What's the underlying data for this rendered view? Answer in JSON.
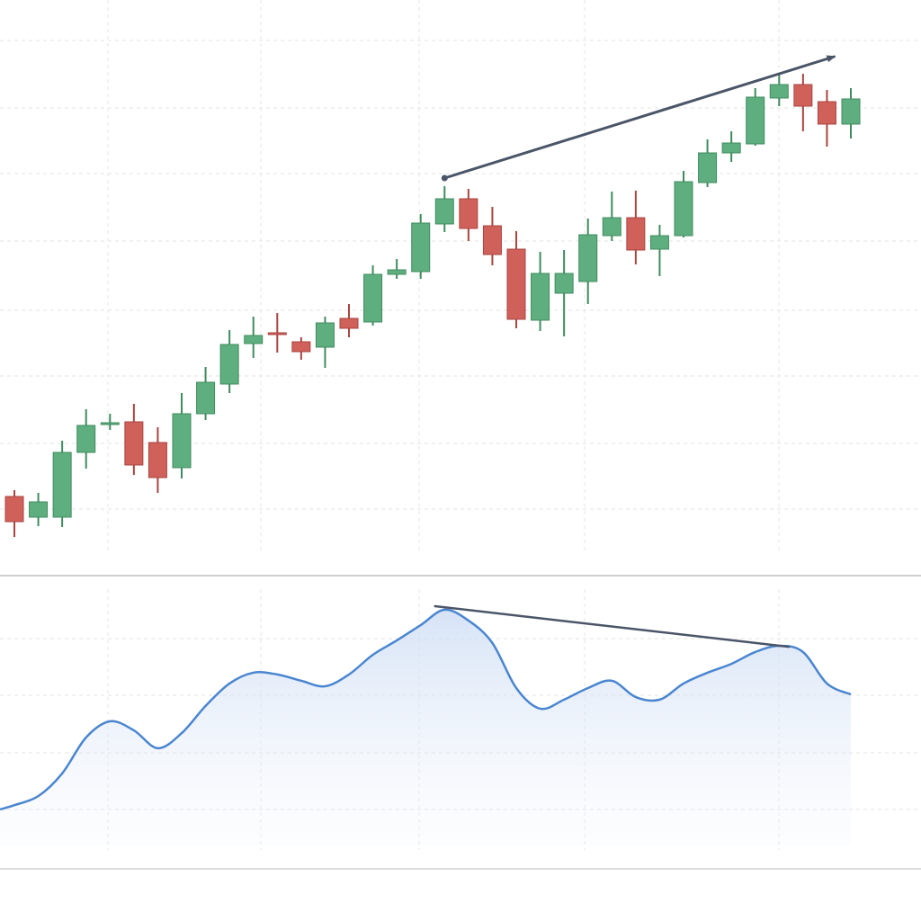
{
  "chart_data": [
    {
      "type": "candlestick",
      "title": "",
      "xlabel": "",
      "ylabel": "",
      "ylim": [
        92,
        212
      ],
      "grid": true,
      "colors": {
        "up": "#5fae7f",
        "down": "#d0605a",
        "up_edge": "#3f8c5e",
        "down_edge": "#a84540"
      },
      "candles": [
        {
          "o": 109.6,
          "h": 111,
          "l": 100.6,
          "c": 104
        },
        {
          "o": 105,
          "h": 110.4,
          "l": 103,
          "c": 108.4
        },
        {
          "o": 105,
          "h": 122,
          "l": 102.8,
          "c": 119.4
        },
        {
          "o": 119.4,
          "h": 129,
          "l": 115.8,
          "c": 125.4
        },
        {
          "o": 126,
          "h": 128,
          "l": 124.4,
          "c": 126
        },
        {
          "o": 126.2,
          "h": 130.2,
          "l": 114.4,
          "c": 116.6
        },
        {
          "o": 121.6,
          "h": 125,
          "l": 110.4,
          "c": 113.8
        },
        {
          "o": 116,
          "h": 132.6,
          "l": 113.6,
          "c": 128
        },
        {
          "o": 128,
          "h": 138.4,
          "l": 126.6,
          "c": 135
        },
        {
          "o": 134.6,
          "h": 146.6,
          "l": 132.6,
          "c": 143.4
        },
        {
          "o": 143.6,
          "h": 149.6,
          "l": 140.4,
          "c": 145.4
        },
        {
          "o": 146,
          "h": 150.4,
          "l": 141.6,
          "c": 145.6
        },
        {
          "o": 144,
          "h": 145,
          "l": 140,
          "c": 141.8
        },
        {
          "o": 142.8,
          "h": 149.6,
          "l": 138.2,
          "c": 148.2
        },
        {
          "o": 149.2,
          "h": 152.4,
          "l": 145,
          "c": 147
        },
        {
          "o": 148.4,
          "h": 161,
          "l": 147.6,
          "c": 159
        },
        {
          "o": 159,
          "h": 162.4,
          "l": 158,
          "c": 160
        },
        {
          "o": 159.6,
          "h": 172.4,
          "l": 158,
          "c": 170.4
        },
        {
          "o": 170.2,
          "h": 178.6,
          "l": 168.4,
          "c": 175.8
        },
        {
          "o": 175.8,
          "h": 178,
          "l": 166.4,
          "c": 169.2
        },
        {
          "o": 169.8,
          "h": 174,
          "l": 161,
          "c": 163.4
        },
        {
          "o": 164.6,
          "h": 168.6,
          "l": 147,
          "c": 149
        },
        {
          "o": 148.8,
          "h": 164,
          "l": 146.4,
          "c": 159.2
        },
        {
          "o": 154.8,
          "h": 164.4,
          "l": 145.2,
          "c": 159.2
        },
        {
          "o": 157.4,
          "h": 171.4,
          "l": 152.4,
          "c": 167.8
        },
        {
          "o": 167.6,
          "h": 177.4,
          "l": 166.4,
          "c": 171.6
        },
        {
          "o": 171.6,
          "h": 177.6,
          "l": 161.2,
          "c": 164.4
        },
        {
          "o": 164.6,
          "h": 170,
          "l": 158.6,
          "c": 167.6
        },
        {
          "o": 167.6,
          "h": 182,
          "l": 167.2,
          "c": 179.6
        },
        {
          "o": 179.4,
          "h": 189,
          "l": 178.4,
          "c": 186
        },
        {
          "o": 186,
          "h": 190.8,
          "l": 184,
          "c": 188.2
        },
        {
          "o": 188,
          "h": 200.4,
          "l": 187.6,
          "c": 198.4
        },
        {
          "o": 198.2,
          "h": 203.6,
          "l": 196.4,
          "c": 201.2
        },
        {
          "o": 201.2,
          "h": 203.6,
          "l": 190.8,
          "c": 196.4
        },
        {
          "o": 197.4,
          "h": 200,
          "l": 187.4,
          "c": 192.4
        },
        {
          "o": 192.4,
          "h": 200.4,
          "l": 189.2,
          "c": 198
        }
      ],
      "trendline": {
        "from": {
          "index": 18,
          "value": 180.4
        },
        "to": {
          "index": 34.3,
          "value": 207.4
        },
        "arrow": true,
        "color": "#4a5568"
      }
    },
    {
      "type": "area",
      "title": "",
      "ylim": [
        0,
        100
      ],
      "grid": true,
      "color": "#4a86d0",
      "x": [
        -0.6,
        0,
        1,
        2,
        3,
        4,
        5,
        6,
        7,
        8,
        9,
        10,
        11,
        12,
        13,
        14,
        15,
        16,
        17,
        18,
        19,
        20,
        21,
        22,
        23,
        24,
        25,
        26,
        27,
        28,
        29,
        30,
        31,
        32,
        33,
        34,
        35
      ],
      "values": [
        14.3,
        16,
        19.6,
        28.6,
        42.9,
        49.3,
        45.7,
        38.6,
        44.6,
        55.4,
        64.3,
        68.6,
        67.9,
        65.4,
        63.2,
        67.9,
        75.7,
        81.4,
        87.5,
        93.6,
        89.3,
        80.4,
        62.5,
        54.3,
        57.9,
        62.5,
        65.4,
        58.9,
        57.9,
        64.3,
        68.6,
        72.1,
        76.8,
        79.3,
        76.8,
        64.3,
        60
      ],
      "trendline": {
        "from": {
          "index": 17.6,
          "value": 95
        },
        "to": {
          "index": 32.4,
          "value": 78.9
        },
        "color": "#4a5568"
      }
    }
  ]
}
